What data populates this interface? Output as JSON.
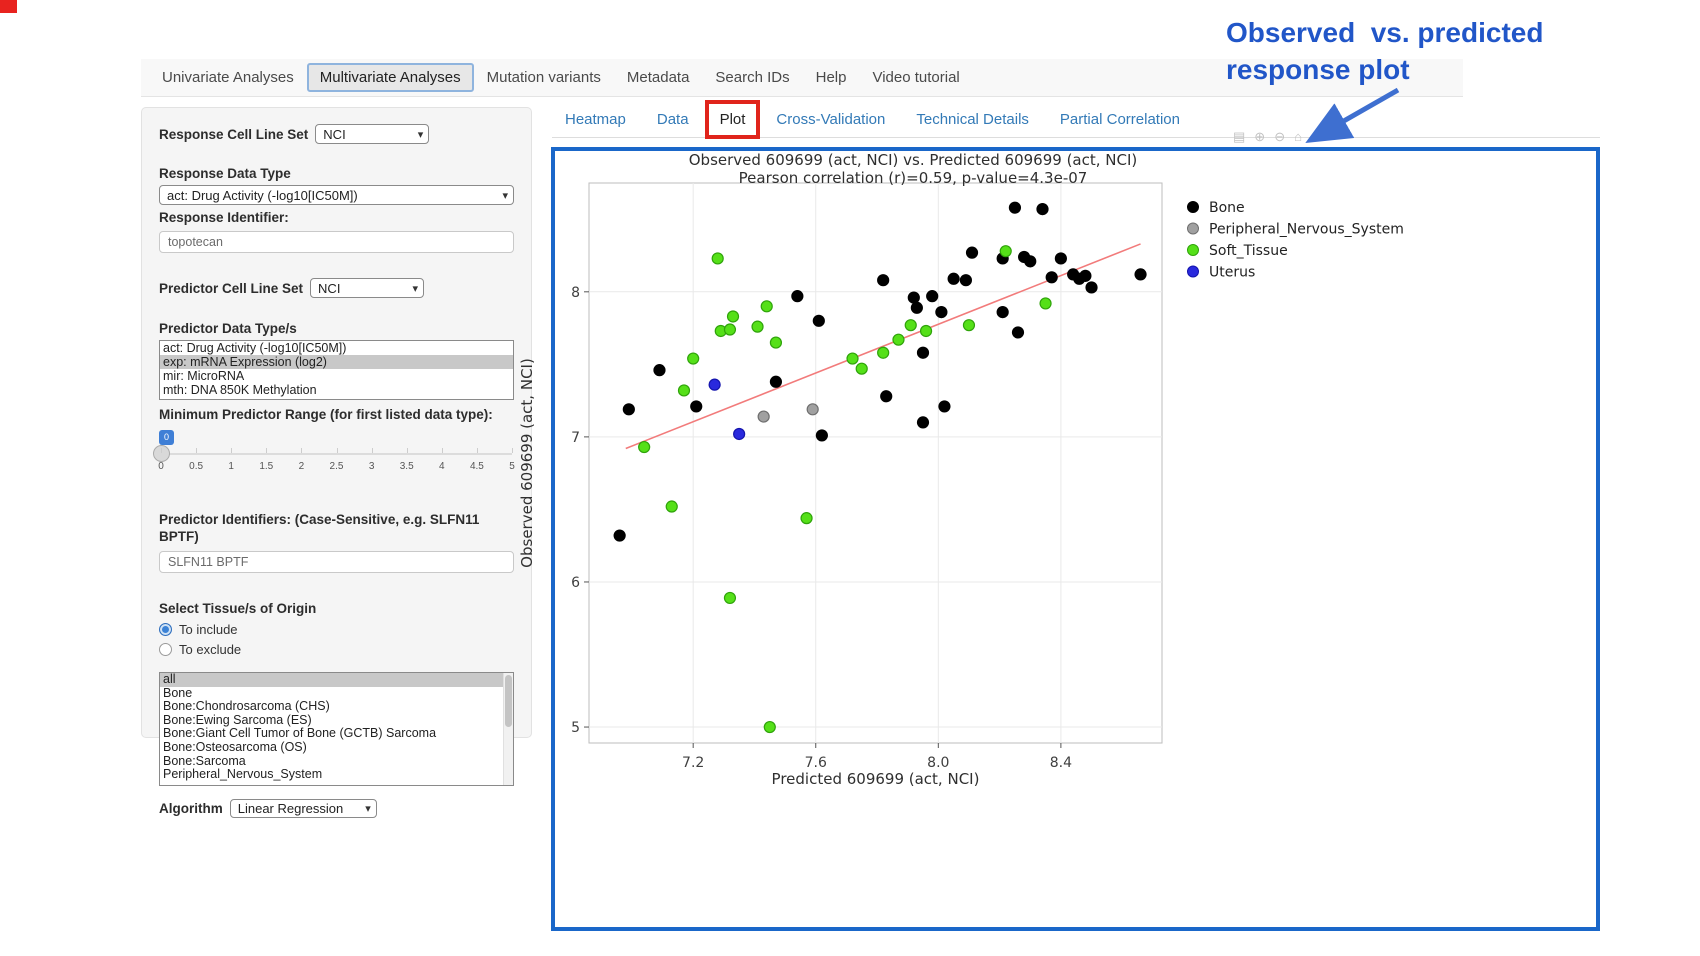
{
  "annotation": {
    "line1": "Observed  vs. predicted",
    "line2": "response plot",
    "color": "#2156c8",
    "arrow_color": "#3e6fd0",
    "highlight_box_color": "#e0241b",
    "plot_border_color": "#1a67c9"
  },
  "navbar": {
    "items": [
      {
        "label": "Univariate Analyses",
        "active": false
      },
      {
        "label": "Multivariate Analyses",
        "active": true
      },
      {
        "label": "Mutation variants",
        "active": false
      },
      {
        "label": "Metadata",
        "active": false
      },
      {
        "label": "Search IDs",
        "active": false
      },
      {
        "label": "Help",
        "active": false
      },
      {
        "label": "Video tutorial",
        "active": false
      }
    ]
  },
  "sidebar": {
    "response_cell_line_set": {
      "label": "Response Cell Line Set",
      "value": "NCI"
    },
    "response_data_type": {
      "label": "Response Data Type",
      "value": "act: Drug Activity (-log10[IC50M])"
    },
    "response_identifier": {
      "label": "Response Identifier:",
      "value": "topotecan"
    },
    "predictor_cell_line_set": {
      "label": "Predictor Cell Line Set",
      "value": "NCI"
    },
    "predictor_data_types": {
      "label": "Predictor Data Type/s",
      "options": [
        "act: Drug Activity (-log10[IC50M])",
        "exp: mRNA Expression (log2)",
        "mir: MicroRNA",
        "mth: DNA 850K Methylation"
      ],
      "selected": "exp: mRNA Expression (log2)"
    },
    "min_predictor_range": {
      "label": "Minimum Predictor Range (for first listed data type):",
      "value": "0",
      "tick_labels": [
        "0",
        "0.5",
        "1",
        "1.5",
        "2",
        "2.5",
        "3",
        "3.5",
        "4",
        "4.5",
        "5"
      ]
    },
    "predictor_identifiers": {
      "label": "Predictor Identifiers: (Case-Sensitive, e.g. SLFN11 BPTF)",
      "value": "SLFN11 BPTF"
    },
    "tissue_origin": {
      "label": "Select Tissue/s of Origin",
      "radios": [
        {
          "label": "To include",
          "checked": true
        },
        {
          "label": "To exclude",
          "checked": false
        }
      ],
      "options": [
        "all",
        "Bone",
        "Bone:Chondrosarcoma (CHS)",
        "Bone:Ewing Sarcoma (ES)",
        "Bone:Giant Cell Tumor of Bone (GCTB) Sarcoma",
        "Bone:Osteosarcoma (OS)",
        "Bone:Sarcoma",
        "Peripheral_Nervous_System"
      ],
      "selected": "all"
    },
    "algorithm": {
      "label": "Algorithm",
      "value": "Linear Regression"
    }
  },
  "subtabs": {
    "items": [
      "Heatmap",
      "Data",
      "Plot",
      "Cross-Validation",
      "Technical Details",
      "Partial Correlation"
    ],
    "active": "Plot",
    "link_color": "#337ab7"
  },
  "modebar": {
    "icons": [
      "camera-icon",
      "zoom-in-icon",
      "zoom-out-icon",
      "home-icon"
    ],
    "glyphs": [
      "▤",
      "⊕",
      "⊖",
      "⌂"
    ]
  },
  "chart_data": {
    "type": "scatter",
    "title": "Observed 609699 (act, NCI) vs. Predicted 609699 (act, NCI)",
    "subtitle": "Pearson correlation (r)=0.59, p-value=4.3e-07",
    "xlabel": "Predicted 609699 (act, NCI)",
    "ylabel": "Observed 609699 (act, NCI)",
    "xlim": [
      6.86,
      8.73
    ],
    "ylim": [
      4.89,
      8.75
    ],
    "xticks": [
      7.2,
      7.6,
      8.0,
      8.4
    ],
    "yticks": [
      5,
      6,
      7,
      8
    ],
    "grid": true,
    "legend_position": "right",
    "regression_line": {
      "x1": 6.98,
      "y1": 6.92,
      "x2": 8.66,
      "y2": 8.33,
      "color": "#f27b7b"
    },
    "series": [
      {
        "name": "Bone",
        "color": "#000000",
        "stroke": "#000000",
        "points": [
          [
            6.96,
            6.32
          ],
          [
            6.99,
            7.19
          ],
          [
            7.09,
            7.46
          ],
          [
            7.21,
            7.21
          ],
          [
            7.47,
            7.38
          ],
          [
            7.54,
            7.97
          ],
          [
            7.61,
            7.8
          ],
          [
            7.62,
            7.01
          ],
          [
            7.82,
            8.08
          ],
          [
            7.83,
            7.28
          ],
          [
            7.92,
            7.96
          ],
          [
            7.93,
            7.89
          ],
          [
            7.95,
            7.58
          ],
          [
            7.95,
            7.1
          ],
          [
            7.98,
            7.97
          ],
          [
            8.01,
            7.86
          ],
          [
            8.02,
            7.21
          ],
          [
            8.05,
            8.09
          ],
          [
            8.09,
            8.08
          ],
          [
            8.11,
            8.27
          ],
          [
            8.21,
            8.23
          ],
          [
            8.21,
            7.86
          ],
          [
            8.25,
            8.58
          ],
          [
            8.26,
            7.72
          ],
          [
            8.28,
            8.24
          ],
          [
            8.3,
            8.21
          ],
          [
            8.34,
            8.57
          ],
          [
            8.37,
            8.1
          ],
          [
            8.4,
            8.23
          ],
          [
            8.44,
            8.12
          ],
          [
            8.46,
            8.09
          ],
          [
            8.48,
            8.11
          ],
          [
            8.5,
            8.03
          ],
          [
            8.66,
            8.12
          ]
        ]
      },
      {
        "name": "Peripheral_Nervous_System",
        "color": "#a0a0a0",
        "stroke": "#6f6f6f",
        "points": [
          [
            7.43,
            7.14
          ],
          [
            7.59,
            7.19
          ]
        ]
      },
      {
        "name": "Soft_Tissue",
        "color": "#55e018",
        "stroke": "#2fa30a",
        "points": [
          [
            7.04,
            6.93
          ],
          [
            7.13,
            6.52
          ],
          [
            7.17,
            7.32
          ],
          [
            7.2,
            7.54
          ],
          [
            7.28,
            8.23
          ],
          [
            7.29,
            7.73
          ],
          [
            7.32,
            7.74
          ],
          [
            7.32,
            5.89
          ],
          [
            7.33,
            7.83
          ],
          [
            7.41,
            7.76
          ],
          [
            7.44,
            7.9
          ],
          [
            7.45,
            5.0
          ],
          [
            7.47,
            7.65
          ],
          [
            7.57,
            6.44
          ],
          [
            7.72,
            7.54
          ],
          [
            7.75,
            7.47
          ],
          [
            7.82,
            7.58
          ],
          [
            7.87,
            7.67
          ],
          [
            7.91,
            7.77
          ],
          [
            7.96,
            7.73
          ],
          [
            8.1,
            7.77
          ],
          [
            8.22,
            8.28
          ],
          [
            8.35,
            7.92
          ]
        ]
      },
      {
        "name": "Uterus",
        "color": "#2929dd",
        "stroke": "#1414ad",
        "points": [
          [
            7.27,
            7.36
          ],
          [
            7.35,
            7.02
          ]
        ]
      }
    ]
  }
}
